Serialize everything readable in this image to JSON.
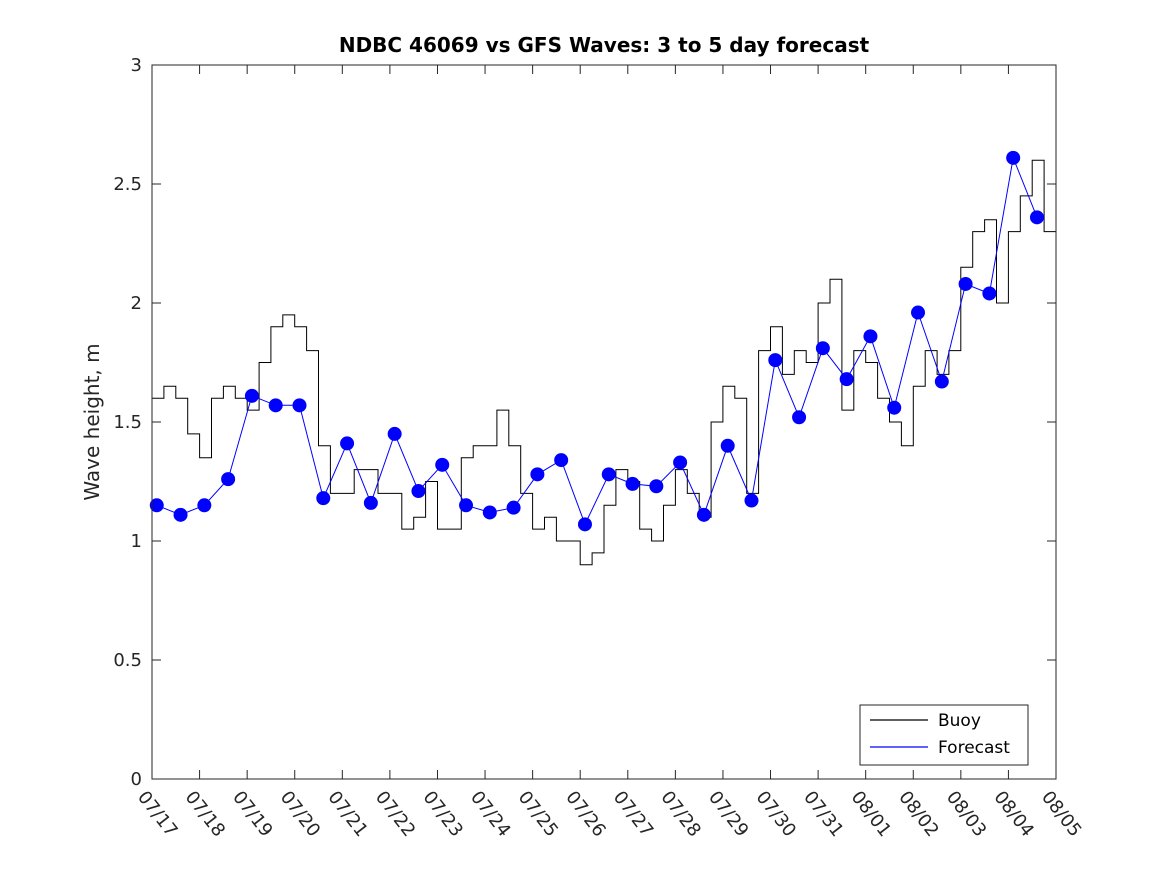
{
  "chart_data": {
    "type": "line",
    "title": "NDBC 46069 vs GFS Waves: 3 to 5 day forecast",
    "xlabel": "",
    "ylabel": "Wave height, m",
    "ylim": [
      0,
      3
    ],
    "yticks": [
      "0",
      "0.5",
      "1",
      "1.5",
      "2",
      "2.5",
      "3"
    ],
    "xlim": [
      "07/17",
      "08/05"
    ],
    "xticks": [
      "07/17",
      "07/18",
      "07/19",
      "07/20",
      "07/21",
      "07/22",
      "07/23",
      "07/24",
      "07/25",
      "07/26",
      "07/27",
      "07/28",
      "07/29",
      "07/30",
      "07/31",
      "08/01",
      "08/02",
      "08/03",
      "08/04",
      "08/05"
    ],
    "grid": false,
    "legend": {
      "placement": "bottom-right",
      "entries": [
        {
          "label": "Buoy",
          "color": "#000000"
        },
        {
          "label": "Forecast",
          "color": "#0000ff"
        }
      ]
    },
    "colors": {
      "buoy": "#000000",
      "forecast": "#0000ff"
    },
    "x_unit": "days since 07/17 00:00",
    "series": [
      {
        "name": "Buoy",
        "x": [
          0,
          0.25,
          0.5,
          0.75,
          1,
          1.25,
          1.5,
          1.75,
          2,
          2.25,
          2.5,
          2.75,
          3,
          3.25,
          3.5,
          3.75,
          4,
          4.25,
          4.5,
          4.75,
          5,
          5.25,
          5.5,
          5.75,
          6,
          6.25,
          6.5,
          6.75,
          7,
          7.25,
          7.5,
          7.75,
          8,
          8.25,
          8.5,
          8.75,
          9,
          9.25,
          9.5,
          9.75,
          10,
          10.25,
          10.5,
          10.75,
          11,
          11.25,
          11.5,
          11.75,
          12,
          12.25,
          12.5,
          12.75,
          13,
          13.25,
          13.5,
          13.75,
          14,
          14.25,
          14.5,
          14.75,
          15,
          15.25,
          15.5,
          15.75,
          16,
          16.25,
          16.5,
          16.75,
          17,
          17.25,
          17.5,
          17.75,
          18,
          18.25,
          18.5,
          18.75,
          19
        ],
        "values": [
          1.6,
          1.65,
          1.6,
          1.45,
          1.35,
          1.6,
          1.65,
          1.6,
          1.55,
          1.75,
          1.9,
          1.95,
          1.9,
          1.8,
          1.4,
          1.2,
          1.2,
          1.3,
          1.3,
          1.2,
          1.2,
          1.05,
          1.1,
          1.25,
          1.05,
          1.05,
          1.35,
          1.4,
          1.4,
          1.55,
          1.4,
          1.2,
          1.05,
          1.1,
          1.0,
          1.0,
          0.9,
          0.95,
          1.15,
          1.3,
          1.25,
          1.05,
          1.0,
          1.15,
          1.3,
          1.2,
          1.1,
          1.5,
          1.65,
          1.6,
          1.2,
          1.8,
          1.9,
          1.7,
          1.8,
          1.75,
          2.0,
          2.1,
          1.55,
          1.8,
          1.75,
          1.6,
          1.5,
          1.4,
          1.65,
          1.8,
          1.7,
          1.8,
          2.15,
          2.3,
          2.35,
          2.0,
          2.3,
          2.45,
          2.6,
          2.3,
          2.4
        ]
      },
      {
        "name": "Forecast",
        "x": [
          0.1,
          0.6,
          1.1,
          1.6,
          2.1,
          2.6,
          3.1,
          3.6,
          4.1,
          4.6,
          5.1,
          5.6,
          6.1,
          6.6,
          7.1,
          7.6,
          8.1,
          8.6,
          9.1,
          9.6,
          10.1,
          10.6,
          11.1,
          11.6,
          12.1,
          12.6,
          13.1,
          13.6,
          14.1,
          14.6,
          15.1,
          15.6,
          16.1,
          16.6,
          17.1,
          17.6,
          18.1,
          18.6
        ],
        "values": [
          1.15,
          1.11,
          1.15,
          1.26,
          1.61,
          1.57,
          1.57,
          1.18,
          1.41,
          1.16,
          1.45,
          1.21,
          1.32,
          1.15,
          1.12,
          1.14,
          1.28,
          1.34,
          1.07,
          1.28,
          1.24,
          1.23,
          1.33,
          1.11,
          1.4,
          1.17,
          1.76,
          1.52,
          1.81,
          1.68,
          1.86,
          1.56,
          1.96,
          1.67,
          2.08,
          2.04,
          2.61,
          2.36
        ]
      }
    ]
  }
}
